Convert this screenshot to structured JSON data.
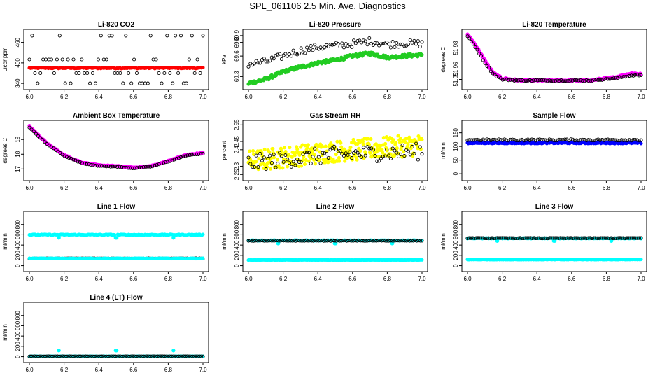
{
  "page_title": "SPL_061106  2.5 Min. Ave. Diagnostics",
  "chart_data": [
    {
      "id": "co2",
      "type": "scatter",
      "title": "Li-820 CO2",
      "ylabel": "Licor ppm",
      "x_ticks": [
        6.0,
        6.2,
        6.4,
        6.6,
        6.8,
        7.0
      ],
      "y_ticks": [
        340,
        400,
        460
      ],
      "xlim": [
        6.0,
        7.0
      ],
      "ylim": [
        330,
        490
      ],
      "series": [
        {
          "name": "co2_measured",
          "color": "#ff0000",
          "pattern": {
            "kind": "flat",
            "base": 385,
            "amp": 2,
            "noise": 1.5,
            "n": 120
          }
        },
        {
          "name": "co2_reference",
          "color": "#000000",
          "pattern": {
            "kind": "levels",
            "levels": [
              340,
              370,
              410,
              480
            ],
            "n": 64
          }
        }
      ]
    },
    {
      "id": "pressure",
      "type": "scatter",
      "title": "Li-820 Pressure",
      "ylabel": "kPa",
      "x_ticks": [
        6.0,
        6.2,
        6.4,
        6.6,
        6.8,
        7.0
      ],
      "y_ticks": [
        69.3,
        69.6,
        69.8,
        69.9
      ],
      "xlim": [
        6.0,
        7.0
      ],
      "ylim": [
        69.15,
        69.95
      ],
      "series": [
        {
          "name": "pressure_main",
          "color": "#22cc22",
          "pattern": {
            "kind": "curve",
            "xs": [
              6.0,
              6.1,
              6.2,
              6.3,
              6.4,
              6.5,
              6.6,
              6.7,
              6.8,
              6.9,
              7.0
            ],
            "ys": [
              69.2,
              69.26,
              69.37,
              69.44,
              69.5,
              69.54,
              69.6,
              69.64,
              69.58,
              69.6,
              69.62
            ],
            "noise": 0.025,
            "n": 240
          }
        },
        {
          "name": "pressure_ref",
          "color": "#000000",
          "pattern": {
            "kind": "curve",
            "xs": [
              6.0,
              6.1,
              6.2,
              6.3,
              6.4,
              6.5,
              6.6,
              6.7,
              6.8,
              6.9,
              7.0
            ],
            "ys": [
              69.48,
              69.52,
              69.6,
              69.68,
              69.73,
              69.75,
              69.78,
              69.82,
              69.77,
              69.79,
              69.78
            ],
            "noise": 0.05,
            "n": 90
          }
        }
      ]
    },
    {
      "id": "licor_temp",
      "type": "scatter",
      "title": "Li-820 Temperature",
      "ylabel": "degrees C",
      "x_ticks": [
        6.0,
        6.2,
        6.4,
        6.6,
        6.8,
        7.0
      ],
      "y_ticks": [
        51.95,
        51.96,
        51.98
      ],
      "xlim": [
        6.0,
        7.0
      ],
      "ylim": [
        51.943,
        51.995
      ],
      "series": [
        {
          "name": "temp_main",
          "color": "#ff00ff",
          "pattern": {
            "kind": "curve",
            "xs": [
              6.0,
              6.05,
              6.1,
              6.15,
              6.2,
              6.3,
              6.5,
              6.7,
              6.85,
              6.95,
              7.0
            ],
            "ys": [
              51.993,
              51.982,
              51.968,
              51.956,
              51.951,
              51.949,
              51.949,
              51.949,
              51.952,
              51.956,
              51.955
            ],
            "noise": 0.0008,
            "n": 220
          }
        },
        {
          "name": "temp_ref",
          "color": "#000000",
          "pattern": {
            "kind": "curve",
            "xs": [
              6.0,
              6.05,
              6.1,
              6.15,
              6.2,
              6.3,
              6.5,
              6.7,
              6.85,
              6.95,
              7.0
            ],
            "ys": [
              51.991,
              51.98,
              51.966,
              51.955,
              51.95,
              51.949,
              51.949,
              51.949,
              51.951,
              51.954,
              51.954
            ],
            "noise": 0.0006,
            "n": 90
          }
        }
      ]
    },
    {
      "id": "ambient_temp",
      "type": "scatter",
      "title": "Ambient Box Temperature",
      "ylabel": "degrees C",
      "x_ticks": [
        6.0,
        6.2,
        6.4,
        6.6,
        6.8,
        7.0
      ],
      "y_ticks": [
        17,
        18,
        19
      ],
      "xlim": [
        6.0,
        7.0
      ],
      "ylim": [
        16.4,
        20.1
      ],
      "series": [
        {
          "name": "ambient_main",
          "color": "#ff00ff",
          "pattern": {
            "kind": "curve",
            "xs": [
              6.0,
              6.1,
              6.2,
              6.3,
              6.4,
              6.5,
              6.6,
              6.7,
              6.8,
              6.9,
              7.0
            ],
            "ys": [
              19.9,
              18.75,
              17.95,
              17.45,
              17.25,
              17.2,
              17.1,
              17.2,
              17.55,
              17.95,
              18.1
            ],
            "noise": 0.03,
            "n": 200
          }
        },
        {
          "name": "ambient_ref",
          "color": "#000000",
          "pattern": {
            "kind": "curve",
            "xs": [
              6.0,
              6.1,
              6.2,
              6.3,
              6.4,
              6.5,
              6.6,
              6.7,
              6.8,
              6.9,
              7.0
            ],
            "ys": [
              19.8,
              18.7,
              17.9,
              17.4,
              17.2,
              17.15,
              17.05,
              17.15,
              17.5,
              17.9,
              18.05
            ],
            "noise": 0.02,
            "n": 80
          }
        }
      ]
    },
    {
      "id": "rh",
      "type": "scatter",
      "title": "Gas Stream RH",
      "ylabel": "percent",
      "x_ticks": [
        6.0,
        6.2,
        6.4,
        6.6,
        6.8,
        7.0
      ],
      "y_ticks": [
        2.25,
        2.3,
        2.4,
        2.45,
        2.55
      ],
      "xlim": [
        6.0,
        7.0
      ],
      "ylim": [
        2.23,
        2.56
      ],
      "series": [
        {
          "name": "rh_main",
          "color": "#ffff00",
          "pattern": {
            "kind": "curve",
            "xs": [
              6.0,
              6.5,
              7.0
            ],
            "ys": [
              2.33,
              2.39,
              2.43
            ],
            "noise": 0.065,
            "n": 300
          }
        },
        {
          "name": "rh_ref",
          "color": "#000000",
          "pattern": {
            "kind": "curve",
            "xs": [
              6.0,
              6.5,
              7.0
            ],
            "ys": [
              2.32,
              2.37,
              2.39
            ],
            "noise": 0.05,
            "n": 90
          }
        }
      ]
    },
    {
      "id": "sample_flow",
      "type": "scatter",
      "title": "Sample Flow",
      "ylabel": "ml/min",
      "x_ticks": [
        6.0,
        6.2,
        6.4,
        6.6,
        6.8,
        7.0
      ],
      "y_ticks": [
        0,
        50,
        100,
        150
      ],
      "xlim": [
        6.0,
        7.0
      ],
      "ylim": [
        -15,
        185
      ],
      "series": [
        {
          "name": "flow_main",
          "color": "#0000ff",
          "pattern": {
            "kind": "flat",
            "base": 113,
            "amp": 0,
            "noise": 2.5,
            "n": 200
          }
        },
        {
          "name": "flow_ref",
          "color": "#000000",
          "pattern": {
            "kind": "flat",
            "base": 124,
            "amp": 0,
            "noise": 2.5,
            "n": 90
          }
        }
      ]
    },
    {
      "id": "line1",
      "type": "scatter",
      "title": "Line 1 Flow",
      "ylabel": "ml/min",
      "x_ticks": [
        6.0,
        6.2,
        6.4,
        6.6,
        6.8,
        7.0
      ],
      "y_ticks": [
        0,
        200,
        400,
        600,
        800
      ],
      "xlim": [
        6.0,
        7.0
      ],
      "ylim": [
        -60,
        1000
      ],
      "series": [
        {
          "name": "line1_set",
          "color": "#00ffff",
          "pattern": {
            "kind": "flat",
            "base": 600,
            "amp": 0,
            "noise": 8,
            "n": 160,
            "dips": [
              6.17,
              6.5,
              6.83
            ],
            "dip_value": 540
          }
        },
        {
          "name": "line1_meas",
          "color": "#000000",
          "pattern": {
            "kind": "flat",
            "base": 140,
            "amp": 0,
            "noise": 3,
            "n": 100
          }
        },
        {
          "name": "line1_low",
          "color": "#00ffff",
          "pattern": {
            "kind": "flat",
            "base": 140,
            "amp": 0,
            "noise": 4,
            "n": 100
          }
        }
      ]
    },
    {
      "id": "line2",
      "type": "scatter",
      "title": "Line 2 Flow",
      "ylabel": "ml/min",
      "x_ticks": [
        6.0,
        6.2,
        6.4,
        6.6,
        6.8,
        7.0
      ],
      "y_ticks": [
        0,
        200,
        400,
        600,
        800
      ],
      "xlim": [
        6.0,
        7.0
      ],
      "ylim": [
        -60,
        1000
      ],
      "series": [
        {
          "name": "line2_set",
          "color": "#00ffff",
          "pattern": {
            "kind": "flat",
            "base": 490,
            "amp": 0,
            "noise": 5,
            "n": 140,
            "dips": [
              6.17,
              6.5,
              6.83
            ],
            "dip_value": 430
          }
        },
        {
          "name": "line2_meas",
          "color": "#000000",
          "pattern": {
            "kind": "flat",
            "base": 485,
            "amp": 0,
            "noise": 4,
            "n": 100
          }
        },
        {
          "name": "line2_low",
          "color": "#00ffff",
          "pattern": {
            "kind": "flat",
            "base": 110,
            "amp": 0,
            "noise": 4,
            "n": 180
          }
        }
      ]
    },
    {
      "id": "line3",
      "type": "scatter",
      "title": "Line 3 Flow",
      "ylabel": "ml/min",
      "x_ticks": [
        6.0,
        6.2,
        6.4,
        6.6,
        6.8,
        7.0
      ],
      "y_ticks": [
        0,
        200,
        400,
        600,
        800
      ],
      "xlim": [
        6.0,
        7.0
      ],
      "ylim": [
        -60,
        1000
      ],
      "series": [
        {
          "name": "line3_set",
          "color": "#00ffff",
          "pattern": {
            "kind": "flat",
            "base": 530,
            "amp": 0,
            "noise": 5,
            "n": 140,
            "dips": [
              6.17,
              6.5,
              6.83
            ],
            "dip_value": 480
          }
        },
        {
          "name": "line3_meas",
          "color": "#000000",
          "pattern": {
            "kind": "flat",
            "base": 535,
            "amp": 0,
            "noise": 4,
            "n": 100
          }
        },
        {
          "name": "line3_low",
          "color": "#00ffff",
          "pattern": {
            "kind": "flat",
            "base": 120,
            "amp": 0,
            "noise": 4,
            "n": 180
          }
        }
      ]
    },
    {
      "id": "line4",
      "type": "scatter",
      "title": "Line 4 (LT) Flow",
      "ylabel": "ml/min",
      "x_ticks": [
        6.0,
        6.2,
        6.4,
        6.6,
        6.8,
        7.0
      ],
      "y_ticks": [
        0,
        200,
        400,
        600,
        800
      ],
      "xlim": [
        6.0,
        7.0
      ],
      "ylim": [
        -60,
        1000
      ],
      "series": [
        {
          "name": "line4_low",
          "color": "#00ffff",
          "pattern": {
            "kind": "flat",
            "base": 5,
            "amp": 0,
            "noise": 3,
            "n": 160,
            "spikes": [
              6.17,
              6.5,
              6.83
            ],
            "spike_value": 120
          }
        },
        {
          "name": "line4_meas",
          "color": "#000000",
          "pattern": {
            "kind": "flat",
            "base": 5,
            "amp": 0,
            "noise": 2,
            "n": 100
          }
        }
      ]
    }
  ]
}
